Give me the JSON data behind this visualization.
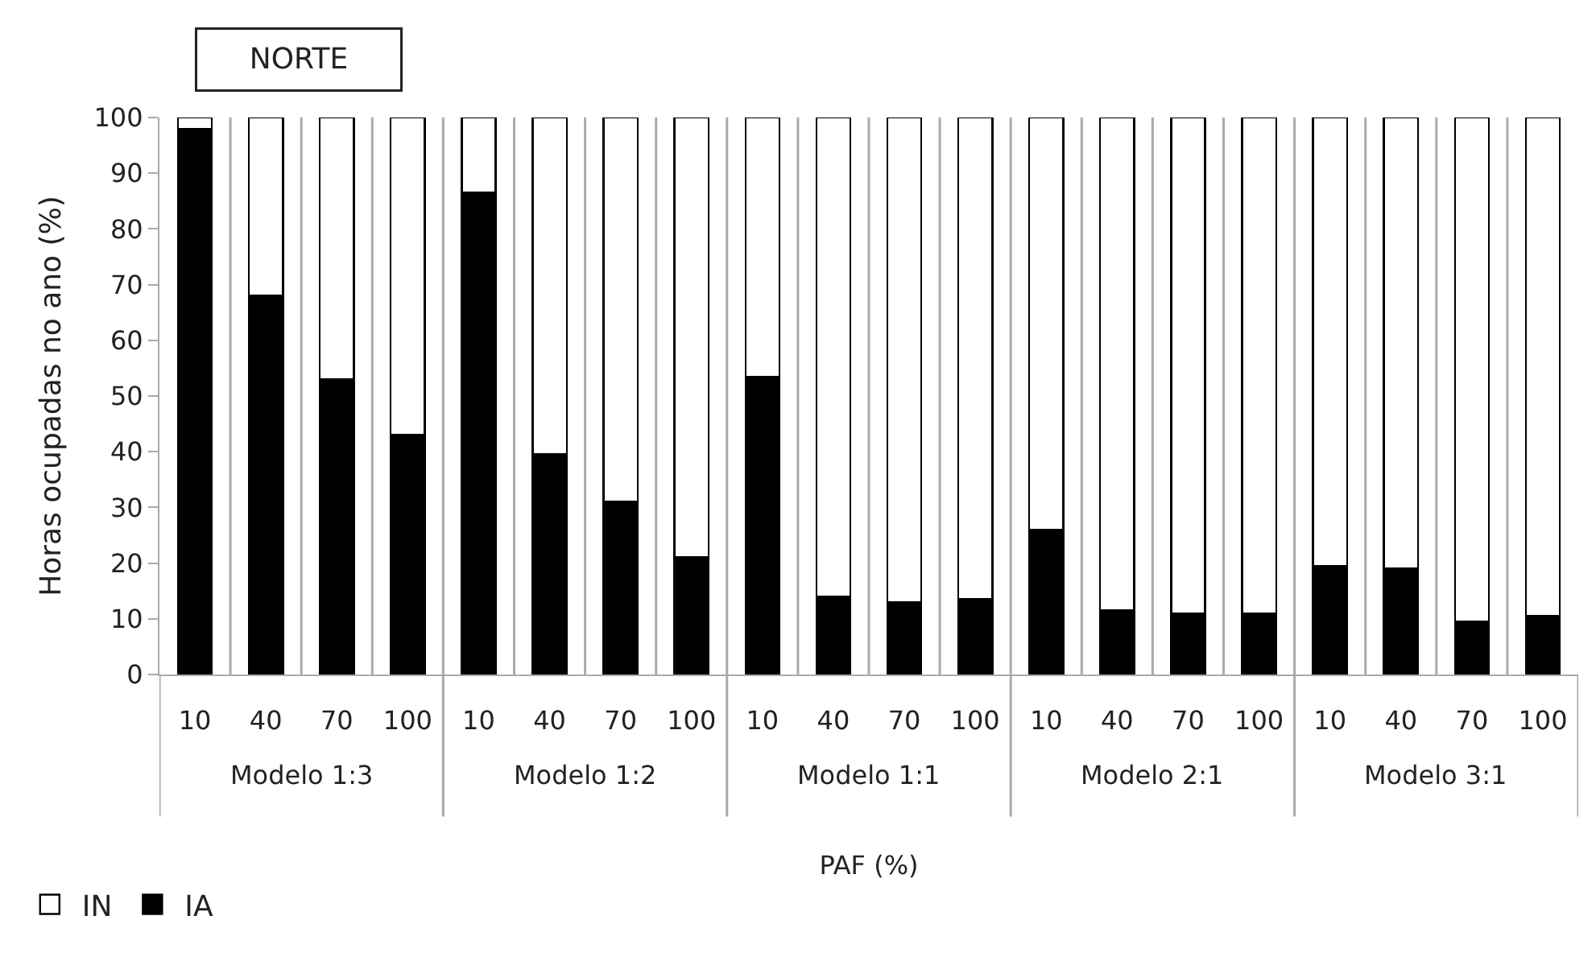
{
  "chart_data": {
    "type": "bar",
    "stacked": true,
    "title": "NORTE",
    "xlabel": "PAF (%)",
    "ylabel": "Horas ocupadas no ano (%)",
    "categories": [
      "10",
      "40",
      "70",
      "100",
      "10",
      "40",
      "70",
      "100",
      "10",
      "40",
      "70",
      "100",
      "10",
      "40",
      "70",
      "100",
      "10",
      "40",
      "70",
      "100"
    ],
    "annotations": [
      "Modelo 1:3",
      "Modelo 1:2",
      "Modelo 1:1",
      "Modelo 2:1",
      "Modelo 3:1"
    ],
    "series": [
      {
        "name": "IA",
        "color": "#000000",
        "values": [
          98,
          68,
          53,
          43,
          86.5,
          39.5,
          31,
          21,
          53.5,
          14,
          13,
          13.5,
          26,
          11.5,
          11,
          11,
          19.5,
          19,
          9.5,
          10.5
        ]
      },
      {
        "name": "IN",
        "color": "#ffffff",
        "values": [
          2,
          32,
          47,
          57,
          13.5,
          60.5,
          69,
          79,
          46.5,
          86,
          87,
          86.5,
          74,
          88.5,
          89,
          89,
          80.5,
          81,
          90.5,
          89.5
        ]
      }
    ],
    "ylim": [
      0,
      100
    ],
    "yticks": [
      0,
      10,
      20,
      30,
      40,
      50,
      60,
      70,
      80,
      90,
      100
    ],
    "grid": "x",
    "legend": "bottom left"
  }
}
